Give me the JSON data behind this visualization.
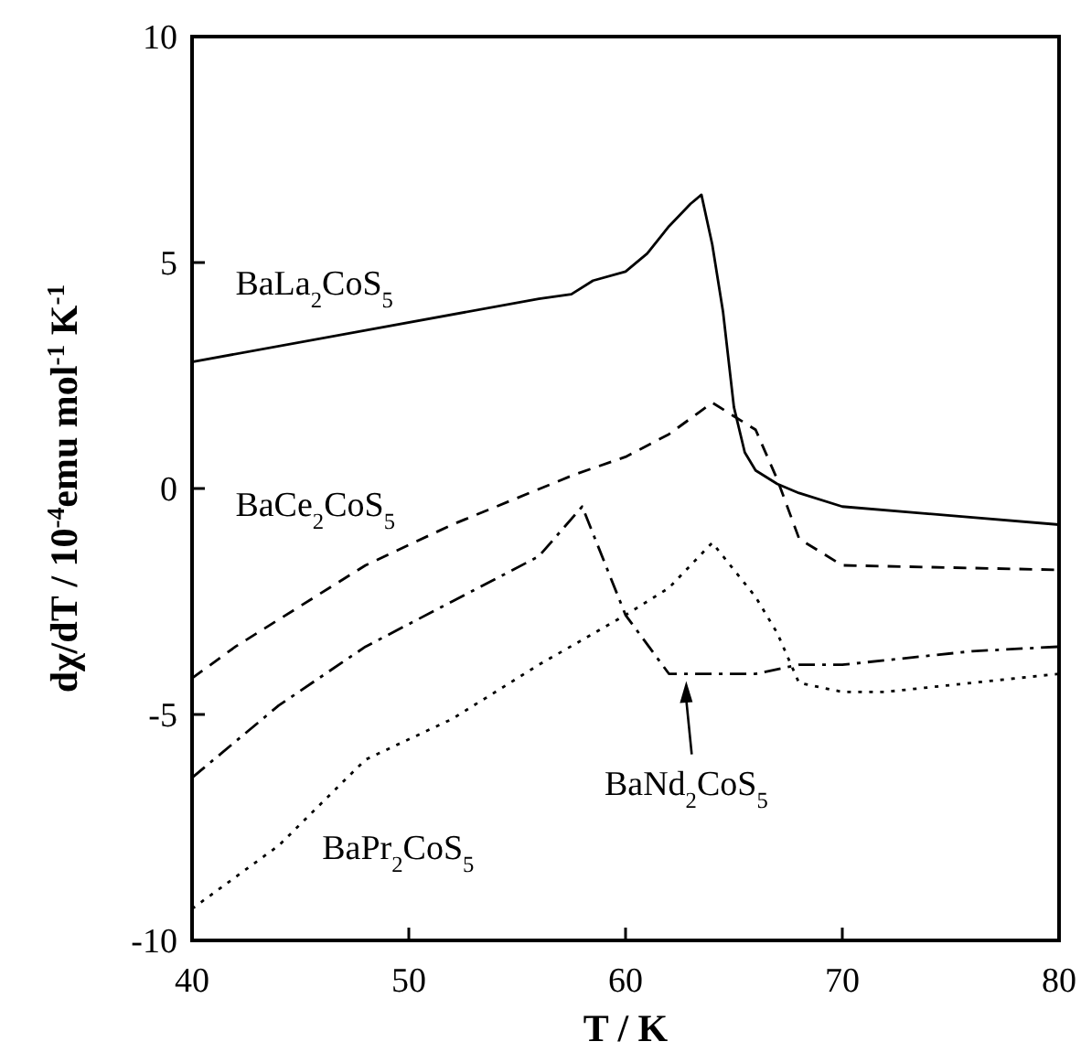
{
  "chart_data": {
    "type": "line",
    "xlabel": "T / K",
    "ylabel": "dχ/dT / 10$^{-4}$emu mol$^{-1}$ K$^{-1}$",
    "xlim": [
      40,
      80
    ],
    "ylim": [
      -10,
      10
    ],
    "xticks": [
      40,
      50,
      60,
      70,
      80
    ],
    "yticks": [
      -10,
      -5,
      0,
      5,
      10
    ],
    "grid": false,
    "marker": "none",
    "annotations": [
      {
        "text": "BaNd$_{2}$CoS$_{5}$",
        "x": 62.8,
        "y": -4.1
      }
    ],
    "series": [
      {
        "name": "BaLa$_{2}$CoS$_{5}$",
        "color": "#000000",
        "line_style": "solid",
        "x": [
          40,
          48,
          56,
          57.5,
          58.5,
          60,
          61,
          62,
          63,
          63.5,
          64,
          64.5,
          65,
          65.5,
          66,
          67,
          68,
          70,
          75,
          80
        ],
        "values": [
          2.8,
          3.5,
          4.2,
          4.3,
          4.6,
          4.8,
          5.2,
          5.8,
          6.3,
          6.5,
          5.4,
          3.9,
          1.8,
          0.8,
          0.4,
          0.1,
          -0.1,
          -0.4,
          -0.6,
          -0.8
        ]
      },
      {
        "name": "BaCe$_{2}$CoS$_{5}$",
        "color": "#000000",
        "line_style": "dashed",
        "x": [
          40,
          42,
          44,
          48,
          52,
          57.6,
          60,
          62,
          64,
          65,
          66,
          67,
          68,
          68.3,
          70,
          80
        ],
        "values": [
          -4.2,
          -3.5,
          -2.9,
          -1.7,
          -0.8,
          0.3,
          0.7,
          1.2,
          1.9,
          1.6,
          1.3,
          0.2,
          -1.1,
          -1.2,
          -1.7,
          -1.8
        ]
      },
      {
        "name": "BaPr$_{2}$CoS$_{5}$",
        "color": "#000000",
        "line_style": "dotted",
        "x": [
          40,
          44,
          48,
          52,
          56,
          60,
          62,
          64,
          66,
          67,
          68,
          70,
          72,
          76,
          80
        ],
        "values": [
          -9.3,
          -7.9,
          -6.0,
          -5.1,
          -3.9,
          -2.8,
          -2.2,
          -1.2,
          -2.4,
          -3.2,
          -4.3,
          -4.5,
          -4.5,
          -4.3,
          -4.1
        ]
      },
      {
        "color": "#000000",
        "line_style": "dashdot",
        "x": [
          40,
          44,
          48,
          52,
          56,
          58,
          60,
          62,
          64,
          66,
          68,
          70,
          72,
          76,
          80
        ],
        "values": [
          -6.4,
          -4.8,
          -3.5,
          -2.5,
          -1.5,
          -0.4,
          -2.8,
          -4.1,
          -4.1,
          -4.1,
          -3.9,
          -3.9,
          -3.8,
          -3.6,
          -3.5
        ]
      }
    ]
  }
}
